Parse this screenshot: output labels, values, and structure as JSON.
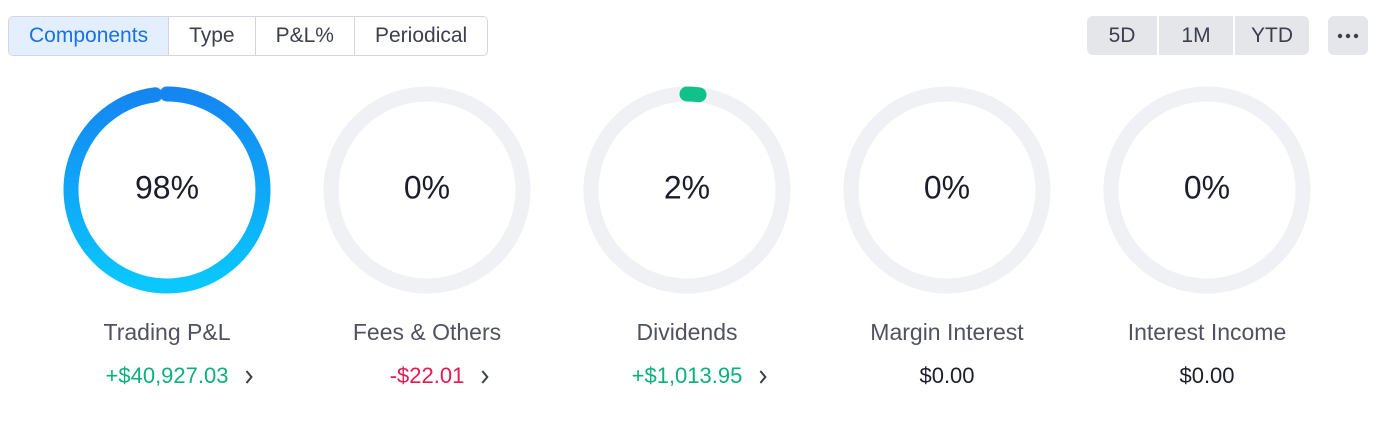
{
  "tabs": {
    "items": [
      "Components",
      "Type",
      "P&L%",
      "Periodical"
    ],
    "active": 0
  },
  "ranges": {
    "items": [
      "5D",
      "1M",
      "YTD"
    ]
  },
  "cards": [
    {
      "percent": {
        "value": 98,
        "label": "98%"
      },
      "name": "Trading P&L",
      "amount": "+$40,927.03",
      "tone": "positive",
      "link": true,
      "gradient": [
        "#1486f2",
        "#0ac8fd"
      ]
    },
    {
      "percent": {
        "value": 0,
        "label": "0%"
      },
      "name": "Fees & Others",
      "amount": "-$22.01",
      "tone": "negative",
      "link": true
    },
    {
      "percent": {
        "value": 2,
        "label": "2%"
      },
      "name": "Dividends",
      "amount": "+$1,013.95",
      "tone": "positive",
      "link": true,
      "color": "#10c18a"
    },
    {
      "percent": {
        "value": 0,
        "label": "0%"
      },
      "name": "Margin Interest",
      "amount": "$0.00",
      "tone": "neutral",
      "link": false
    },
    {
      "percent": {
        "value": 0,
        "label": "0%"
      },
      "name": "Interest Income",
      "amount": "$0.00",
      "tone": "neutral",
      "link": false
    }
  ]
}
